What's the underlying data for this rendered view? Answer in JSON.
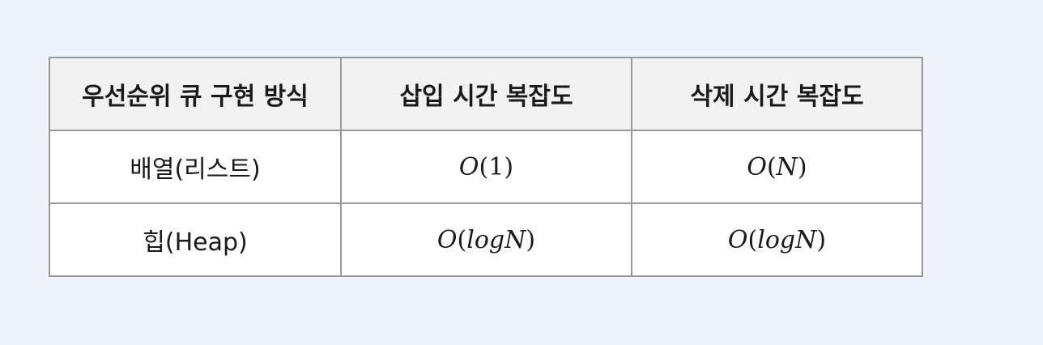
{
  "table": {
    "headers": [
      "우선순위 큐 구현 방식",
      "삽입 시간 복잡도",
      "삭제 시간 복잡도"
    ],
    "rows": [
      {
        "method": "배열(리스트)",
        "insert": {
          "fn": "O",
          "open": "(",
          "arg": "1",
          "close": ")"
        },
        "delete": {
          "fn": "O",
          "open": "(",
          "arg": "N",
          "close": ")"
        }
      },
      {
        "method": "힙(Heap)",
        "insert": {
          "fn": "O",
          "open": "(",
          "arg": "logN",
          "close": ")"
        },
        "delete": {
          "fn": "O",
          "open": "(",
          "arg": "logN",
          "close": ")"
        }
      }
    ]
  }
}
